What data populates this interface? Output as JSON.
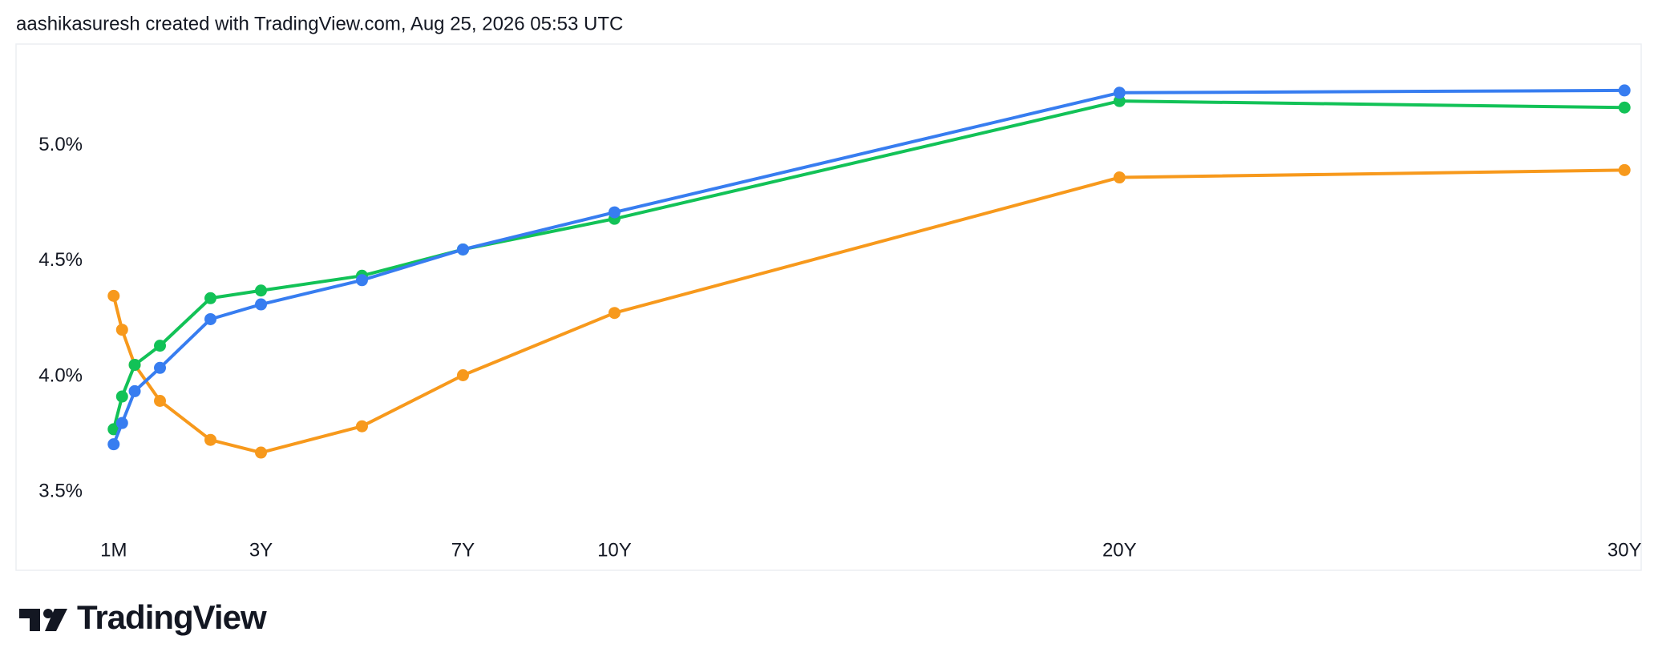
{
  "header": "aashikasuresh created with TradingView.com, Aug 25, 2026 05:53 UTC",
  "chart_data": {
    "type": "line",
    "x": [
      0.0833,
      0.25,
      0.5,
      1,
      2,
      3,
      5,
      7,
      10,
      20,
      30
    ],
    "xlim": [
      -1.85,
      30.33
    ],
    "xticks": [
      {
        "value": 0.0833,
        "label": "1M"
      },
      {
        "value": 3,
        "label": "3Y"
      },
      {
        "value": 7,
        "label": "7Y"
      },
      {
        "value": 10,
        "label": "10Y"
      },
      {
        "value": 20,
        "label": "20Y"
      },
      {
        "value": 30,
        "label": "30Y"
      }
    ],
    "ylim": [
      3.16,
      5.44
    ],
    "yticks": [
      {
        "value": 3.5,
        "label": "3.5%"
      },
      {
        "value": 4,
        "label": "4.0%"
      },
      {
        "value": 4.5,
        "label": "4.5%"
      },
      {
        "value": 5,
        "label": "5.0%"
      }
    ],
    "grid": false,
    "series": [
      {
        "color": "#f7991c",
        "values": [
          4.349,
          4.202,
          4.05,
          3.894,
          3.725,
          3.67,
          3.784,
          4.005,
          4.275,
          4.862,
          4.894
        ]
      },
      {
        "color": "#12c257",
        "values": [
          3.771,
          3.913,
          4.05,
          4.133,
          4.339,
          4.372,
          4.436,
          4.55,
          4.683,
          5.193,
          5.165
        ]
      },
      {
        "color": "#377df0",
        "values": [
          3.706,
          3.798,
          3.936,
          4.037,
          4.248,
          4.312,
          4.417,
          4.55,
          4.711,
          5.229,
          5.239
        ]
      }
    ]
  },
  "footer_logo": "TradingView"
}
